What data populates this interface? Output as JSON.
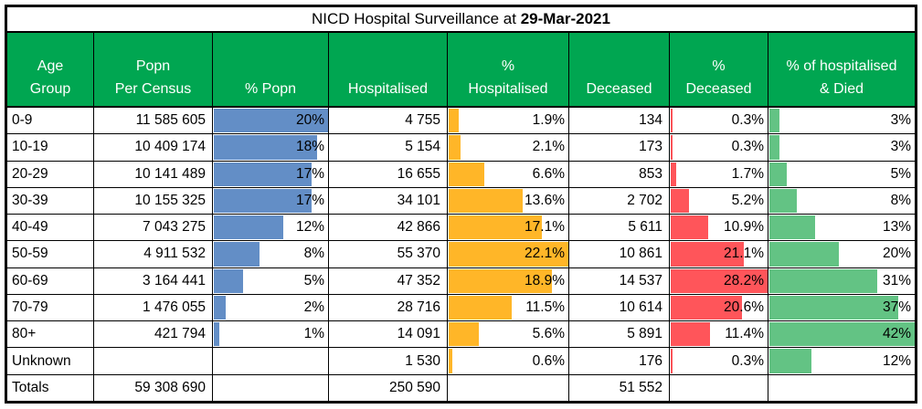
{
  "title": {
    "prefix": "NICD Hospital Surveillance at ",
    "date": "29-Mar-2021"
  },
  "colors": {
    "header_bg": "#00A651",
    "header_text": "#FFFFFF",
    "blue": "#638EC6",
    "orange": "#FFB628",
    "red": "#FF555A",
    "green": "#63C384",
    "border": "#000000"
  },
  "table": {
    "columns": [
      {
        "key": "age",
        "label": "Age\nGroup",
        "align": "left"
      },
      {
        "key": "popn",
        "label": "Popn\nPer Census",
        "align": "right"
      },
      {
        "key": "pct_popn",
        "label": "% Popn",
        "bar": "blue",
        "max": 20
      },
      {
        "key": "hosp",
        "label": "Hospitalised",
        "align": "right"
      },
      {
        "key": "pct_hosp",
        "label": "%\nHospitalised",
        "bar": "orange",
        "max": 22.1
      },
      {
        "key": "dec",
        "label": "Deceased",
        "align": "right"
      },
      {
        "key": "pct_dec",
        "label": "%\nDeceased",
        "bar": "red",
        "max": 28.2
      },
      {
        "key": "pct_hosp_died",
        "label": "% of hospitalised\n& Died",
        "bar": "green",
        "max": 42
      }
    ],
    "rows": [
      {
        "age": "0-9",
        "popn": "11 585 605",
        "pct_popn": {
          "label": "20%",
          "value": 20
        },
        "hosp": "4 755",
        "pct_hosp": {
          "label": "1.9%",
          "value": 1.9
        },
        "dec": "134",
        "pct_dec": {
          "label": "0.3%",
          "value": 0.3
        },
        "pct_hosp_died": {
          "label": "3%",
          "value": 3
        }
      },
      {
        "age": "10-19",
        "popn": "10 409 174",
        "pct_popn": {
          "label": "18%",
          "value": 18
        },
        "hosp": "5 154",
        "pct_hosp": {
          "label": "2.1%",
          "value": 2.1
        },
        "dec": "173",
        "pct_dec": {
          "label": "0.3%",
          "value": 0.3
        },
        "pct_hosp_died": {
          "label": "3%",
          "value": 3
        }
      },
      {
        "age": "20-29",
        "popn": "10 141 489",
        "pct_popn": {
          "label": "17%",
          "value": 17
        },
        "hosp": "16 655",
        "pct_hosp": {
          "label": "6.6%",
          "value": 6.6
        },
        "dec": "853",
        "pct_dec": {
          "label": "1.7%",
          "value": 1.7
        },
        "pct_hosp_died": {
          "label": "5%",
          "value": 5
        }
      },
      {
        "age": "30-39",
        "popn": "10 155 325",
        "pct_popn": {
          "label": "17%",
          "value": 17
        },
        "hosp": "34 101",
        "pct_hosp": {
          "label": "13.6%",
          "value": 13.6
        },
        "dec": "2 702",
        "pct_dec": {
          "label": "5.2%",
          "value": 5.2
        },
        "pct_hosp_died": {
          "label": "8%",
          "value": 8
        }
      },
      {
        "age": "40-49",
        "popn": "7 043 275",
        "pct_popn": {
          "label": "12%",
          "value": 12
        },
        "hosp": "42 866",
        "pct_hosp": {
          "label": "17.1%",
          "value": 17.1
        },
        "dec": "5 611",
        "pct_dec": {
          "label": "10.9%",
          "value": 10.9
        },
        "pct_hosp_died": {
          "label": "13%",
          "value": 13
        }
      },
      {
        "age": "50-59",
        "popn": "4 911 532",
        "pct_popn": {
          "label": "8%",
          "value": 8
        },
        "hosp": "55 370",
        "pct_hosp": {
          "label": "22.1%",
          "value": 22.1
        },
        "dec": "10 861",
        "pct_dec": {
          "label": "21.1%",
          "value": 21.1
        },
        "pct_hosp_died": {
          "label": "20%",
          "value": 20
        }
      },
      {
        "age": "60-69",
        "popn": "3 164 441",
        "pct_popn": {
          "label": "5%",
          "value": 5
        },
        "hosp": "47 352",
        "pct_hosp": {
          "label": "18.9%",
          "value": 18.9
        },
        "dec": "14 537",
        "pct_dec": {
          "label": "28.2%",
          "value": 28.2
        },
        "pct_hosp_died": {
          "label": "31%",
          "value": 31
        }
      },
      {
        "age": "70-79",
        "popn": "1 476 055",
        "pct_popn": {
          "label": "2%",
          "value": 2
        },
        "hosp": "28 716",
        "pct_hosp": {
          "label": "11.5%",
          "value": 11.5
        },
        "dec": "10 614",
        "pct_dec": {
          "label": "20.6%",
          "value": 20.6
        },
        "pct_hosp_died": {
          "label": "37%",
          "value": 37
        }
      },
      {
        "age": "80+",
        "popn": "421 794",
        "pct_popn": {
          "label": "1%",
          "value": 1
        },
        "hosp": "14 091",
        "pct_hosp": {
          "label": "5.6%",
          "value": 5.6
        },
        "dec": "5 891",
        "pct_dec": {
          "label": "11.4%",
          "value": 11.4
        },
        "pct_hosp_died": {
          "label": "42%",
          "value": 42
        }
      },
      {
        "age": "Unknown",
        "popn": "",
        "pct_popn": null,
        "hosp": "1 530",
        "pct_hosp": {
          "label": "0.6%",
          "value": 0.6
        },
        "dec": "176",
        "pct_dec": {
          "label": "0.3%",
          "value": 0.3
        },
        "pct_hosp_died": {
          "label": "12%",
          "value": 12
        }
      },
      {
        "age": "Totals",
        "popn": "59 308 690",
        "pct_popn": null,
        "hosp": "250 590",
        "pct_hosp": null,
        "dec": "51 552",
        "pct_dec": null,
        "pct_hosp_died": null
      }
    ]
  },
  "chart_data": {
    "type": "table",
    "title": "NICD Hospital Surveillance at 29-Mar-2021",
    "categories": [
      "0-9",
      "10-19",
      "20-29",
      "30-39",
      "40-49",
      "50-59",
      "60-69",
      "70-79",
      "80+",
      "Unknown"
    ],
    "series": [
      {
        "name": "Popn Per Census",
        "values": [
          11585605,
          10409174,
          10141489,
          10155325,
          7043275,
          4911532,
          3164441,
          1476055,
          421794,
          null
        ]
      },
      {
        "name": "% Popn",
        "values": [
          20,
          18,
          17,
          17,
          12,
          8,
          5,
          2,
          1,
          null
        ],
        "bar_color": "#638EC6",
        "bar_max": 20
      },
      {
        "name": "Hospitalised",
        "values": [
          4755,
          5154,
          16655,
          34101,
          42866,
          55370,
          47352,
          28716,
          14091,
          1530
        ]
      },
      {
        "name": "% Hospitalised",
        "values": [
          1.9,
          2.1,
          6.6,
          13.6,
          17.1,
          22.1,
          18.9,
          11.5,
          5.6,
          0.6
        ],
        "bar_color": "#FFB628",
        "bar_max": 22.1
      },
      {
        "name": "Deceased",
        "values": [
          134,
          173,
          853,
          2702,
          5611,
          10861,
          14537,
          10614,
          5891,
          176
        ]
      },
      {
        "name": "% Deceased",
        "values": [
          0.3,
          0.3,
          1.7,
          5.2,
          10.9,
          21.1,
          28.2,
          20.6,
          11.4,
          0.3
        ],
        "bar_color": "#FF555A",
        "bar_max": 28.2
      },
      {
        "name": "% of hospitalised & Died",
        "values": [
          3,
          3,
          5,
          8,
          13,
          20,
          31,
          37,
          42,
          12
        ],
        "bar_color": "#63C384",
        "bar_max": 42
      }
    ],
    "totals": {
      "Popn Per Census": 59308690,
      "Hospitalised": 250590,
      "Deceased": 51552
    }
  }
}
